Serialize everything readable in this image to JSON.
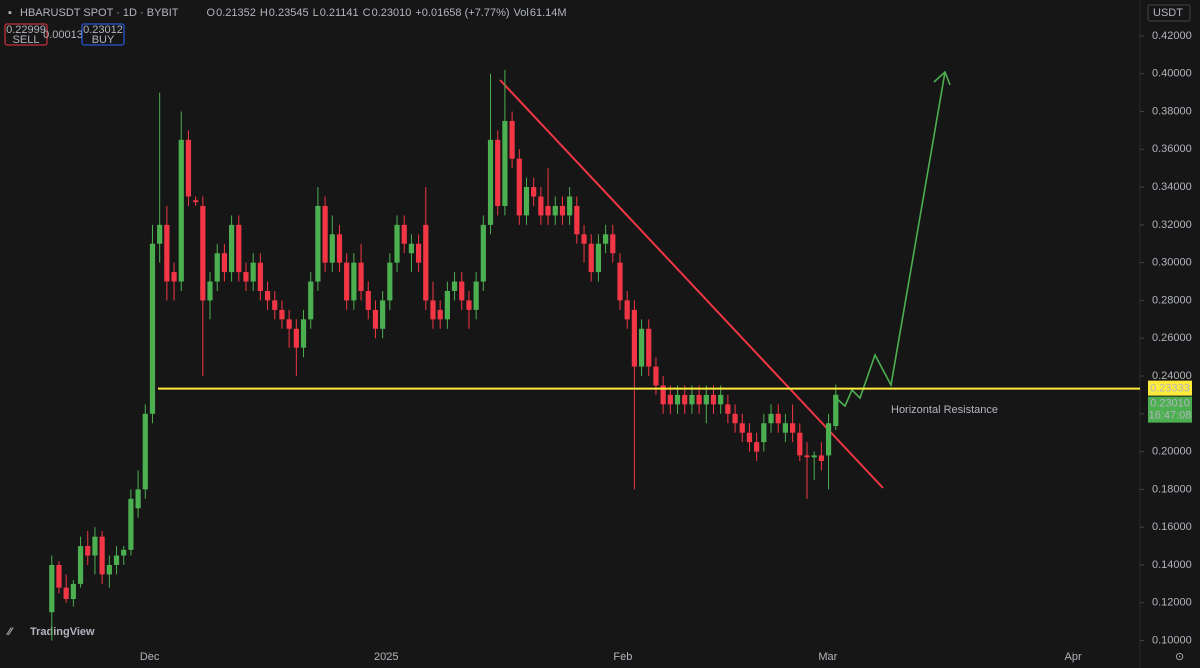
{
  "chart_data": {
    "type": "candlestick",
    "header": {
      "symbol": "HBARUSDT SPOT · 1D · BYBIT",
      "stats": [
        {
          "k": "O",
          "v": "0.21352"
        },
        {
          "k": "H",
          "v": "0.23545"
        },
        {
          "k": "L",
          "v": "0.21141"
        },
        {
          "k": "C",
          "v": "0.23010"
        },
        {
          "k": "",
          "v": "+0.01658 (+7.77%)"
        },
        {
          "k": "Vol",
          "v": "61.14M"
        }
      ],
      "sell_price": "0.22999",
      "sell": "SELL",
      "spread": "0.00013",
      "buy_price": "0.23012",
      "buy": "BUY",
      "currency": "USDT"
    },
    "up_color": "#4caf50",
    "down_color": "#f23645",
    "ohlc": [
      [
        0.115,
        0.145,
        0.1,
        0.14
      ],
      [
        0.14,
        0.142,
        0.125,
        0.128
      ],
      [
        0.128,
        0.135,
        0.12,
        0.122
      ],
      [
        0.122,
        0.132,
        0.118,
        0.13
      ],
      [
        0.13,
        0.155,
        0.128,
        0.15
      ],
      [
        0.15,
        0.158,
        0.14,
        0.145
      ],
      [
        0.145,
        0.16,
        0.135,
        0.155
      ],
      [
        0.155,
        0.158,
        0.13,
        0.135
      ],
      [
        0.135,
        0.145,
        0.128,
        0.14
      ],
      [
        0.14,
        0.15,
        0.135,
        0.145
      ],
      [
        0.145,
        0.15,
        0.14,
        0.148
      ],
      [
        0.148,
        0.18,
        0.145,
        0.175
      ],
      [
        0.17,
        0.19,
        0.165,
        0.18
      ],
      [
        0.18,
        0.225,
        0.175,
        0.22
      ],
      [
        0.22,
        0.32,
        0.215,
        0.31
      ],
      [
        0.31,
        0.39,
        0.3,
        0.32
      ],
      [
        0.32,
        0.33,
        0.28,
        0.29
      ],
      [
        0.295,
        0.3,
        0.28,
        0.29
      ],
      [
        0.29,
        0.38,
        0.285,
        0.365
      ],
      [
        0.365,
        0.37,
        0.33,
        0.335
      ],
      [
        0.333,
        0.335,
        0.33,
        0.332
      ],
      [
        0.33,
        0.335,
        0.24,
        0.28
      ],
      [
        0.28,
        0.295,
        0.27,
        0.29
      ],
      [
        0.29,
        0.31,
        0.285,
        0.305
      ],
      [
        0.305,
        0.31,
        0.29,
        0.295
      ],
      [
        0.295,
        0.325,
        0.29,
        0.32
      ],
      [
        0.32,
        0.325,
        0.29,
        0.295
      ],
      [
        0.295,
        0.3,
        0.285,
        0.29
      ],
      [
        0.29,
        0.305,
        0.285,
        0.3
      ],
      [
        0.3,
        0.305,
        0.28,
        0.285
      ],
      [
        0.285,
        0.29,
        0.275,
        0.28
      ],
      [
        0.28,
        0.285,
        0.27,
        0.275
      ],
      [
        0.275,
        0.28,
        0.265,
        0.27
      ],
      [
        0.27,
        0.275,
        0.255,
        0.265
      ],
      [
        0.265,
        0.27,
        0.24,
        0.255
      ],
      [
        0.255,
        0.275,
        0.25,
        0.27
      ],
      [
        0.27,
        0.295,
        0.265,
        0.29
      ],
      [
        0.29,
        0.34,
        0.285,
        0.33
      ],
      [
        0.33,
        0.335,
        0.295,
        0.3
      ],
      [
        0.3,
        0.325,
        0.295,
        0.315
      ],
      [
        0.315,
        0.32,
        0.295,
        0.3
      ],
      [
        0.3,
        0.305,
        0.275,
        0.28
      ],
      [
        0.28,
        0.305,
        0.275,
        0.3
      ],
      [
        0.3,
        0.31,
        0.28,
        0.285
      ],
      [
        0.285,
        0.29,
        0.27,
        0.275
      ],
      [
        0.275,
        0.28,
        0.26,
        0.265
      ],
      [
        0.265,
        0.285,
        0.26,
        0.28
      ],
      [
        0.28,
        0.305,
        0.275,
        0.3
      ],
      [
        0.3,
        0.325,
        0.295,
        0.32
      ],
      [
        0.32,
        0.325,
        0.305,
        0.31
      ],
      [
        0.305,
        0.315,
        0.295,
        0.31
      ],
      [
        0.31,
        0.315,
        0.295,
        0.3
      ],
      [
        0.32,
        0.34,
        0.275,
        0.28
      ],
      [
        0.28,
        0.29,
        0.265,
        0.27
      ],
      [
        0.275,
        0.28,
        0.265,
        0.27
      ],
      [
        0.27,
        0.29,
        0.265,
        0.285
      ],
      [
        0.285,
        0.295,
        0.28,
        0.29
      ],
      [
        0.29,
        0.295,
        0.275,
        0.28
      ],
      [
        0.28,
        0.285,
        0.265,
        0.275
      ],
      [
        0.275,
        0.295,
        0.27,
        0.29
      ],
      [
        0.29,
        0.325,
        0.285,
        0.32
      ],
      [
        0.32,
        0.4,
        0.315,
        0.365
      ],
      [
        0.365,
        0.37,
        0.325,
        0.33
      ],
      [
        0.33,
        0.402,
        0.325,
        0.375
      ],
      [
        0.375,
        0.38,
        0.35,
        0.355
      ],
      [
        0.355,
        0.36,
        0.32,
        0.325
      ],
      [
        0.325,
        0.345,
        0.32,
        0.34
      ],
      [
        0.34,
        0.345,
        0.33,
        0.335
      ],
      [
        0.335,
        0.34,
        0.32,
        0.325
      ],
      [
        0.33,
        0.35,
        0.32,
        0.325
      ],
      [
        0.325,
        0.335,
        0.32,
        0.33
      ],
      [
        0.33,
        0.335,
        0.32,
        0.325
      ],
      [
        0.325,
        0.34,
        0.32,
        0.335
      ],
      [
        0.33,
        0.335,
        0.31,
        0.315
      ],
      [
        0.315,
        0.32,
        0.3,
        0.31
      ],
      [
        0.31,
        0.315,
        0.29,
        0.295
      ],
      [
        0.295,
        0.315,
        0.29,
        0.31
      ],
      [
        0.31,
        0.32,
        0.305,
        0.315
      ],
      [
        0.315,
        0.32,
        0.3,
        0.305
      ],
      [
        0.3,
        0.305,
        0.275,
        0.28
      ],
      [
        0.28,
        0.285,
        0.265,
        0.27
      ],
      [
        0.275,
        0.28,
        0.18,
        0.245
      ],
      [
        0.245,
        0.27,
        0.24,
        0.265
      ],
      [
        0.265,
        0.27,
        0.24,
        0.245
      ],
      [
        0.245,
        0.25,
        0.23,
        0.235
      ],
      [
        0.235,
        0.24,
        0.22,
        0.225
      ],
      [
        0.23,
        0.235,
        0.22,
        0.225
      ],
      [
        0.225,
        0.235,
        0.22,
        0.23
      ],
      [
        0.23,
        0.235,
        0.22,
        0.225
      ],
      [
        0.225,
        0.235,
        0.22,
        0.23
      ],
      [
        0.23,
        0.235,
        0.22,
        0.225
      ],
      [
        0.225,
        0.235,
        0.215,
        0.23
      ],
      [
        0.23,
        0.235,
        0.22,
        0.225
      ],
      [
        0.225,
        0.235,
        0.22,
        0.23
      ],
      [
        0.225,
        0.23,
        0.215,
        0.22
      ],
      [
        0.22,
        0.225,
        0.21,
        0.215
      ],
      [
        0.215,
        0.22,
        0.205,
        0.21
      ],
      [
        0.21,
        0.215,
        0.2,
        0.205
      ],
      [
        0.205,
        0.21,
        0.195,
        0.2
      ],
      [
        0.205,
        0.22,
        0.2,
        0.215
      ],
      [
        0.215,
        0.225,
        0.21,
        0.22
      ],
      [
        0.22,
        0.225,
        0.21,
        0.215
      ],
      [
        0.21,
        0.22,
        0.205,
        0.215
      ],
      [
        0.215,
        0.225,
        0.205,
        0.21
      ],
      [
        0.21,
        0.215,
        0.195,
        0.198
      ],
      [
        0.198,
        0.205,
        0.175,
        0.197
      ],
      [
        0.197,
        0.2,
        0.185,
        0.198
      ],
      [
        0.198,
        0.205,
        0.19,
        0.195
      ],
      [
        0.198,
        0.22,
        0.18,
        0.215
      ],
      [
        0.21352,
        0.23545,
        0.21141,
        0.2301
      ]
    ],
    "xlim": [
      -7.2,
      151.3
    ],
    "ylim": [
      0.095,
      0.439
    ],
    "xticks": [
      {
        "value": 13.6,
        "label": "Dec"
      },
      {
        "value": 46.5,
        "label": "2025"
      },
      {
        "value": 79.4,
        "label": "Feb"
      },
      {
        "value": 107.9,
        "label": "Mar"
      },
      {
        "value": 142,
        "label": "Apr"
      }
    ],
    "yticks": [
      {
        "value": 0.1,
        "label": "0.10000"
      },
      {
        "value": 0.12,
        "label": "0.12000"
      },
      {
        "value": 0.14,
        "label": "0.14000"
      },
      {
        "value": 0.16,
        "label": "0.16000"
      },
      {
        "value": 0.18,
        "label": "0.18000"
      },
      {
        "value": 0.2,
        "label": "0.20000"
      },
      {
        "value": 0.22,
        "label": "0.22000"
      },
      {
        "value": 0.24,
        "label": "0.24000"
      },
      {
        "value": 0.26,
        "label": "0.26000"
      },
      {
        "value": 0.28,
        "label": "0.28000"
      },
      {
        "value": 0.3,
        "label": "0.30000"
      },
      {
        "value": 0.32,
        "label": "0.32000"
      },
      {
        "value": 0.34,
        "label": "0.34000"
      },
      {
        "value": 0.36,
        "label": "0.36000"
      },
      {
        "value": 0.38,
        "label": "0.38000"
      },
      {
        "value": 0.4,
        "label": "0.40000"
      },
      {
        "value": 0.42,
        "label": "0.42000"
      }
    ],
    "resistance": {
      "value": 0.23333,
      "label": "0.23333",
      "color": "#ffeb3b",
      "text": "Horizontal Resistance"
    },
    "last_price": {
      "label": "0.23010",
      "countdown": "16:47:08"
    },
    "brand": "TradingView"
  }
}
